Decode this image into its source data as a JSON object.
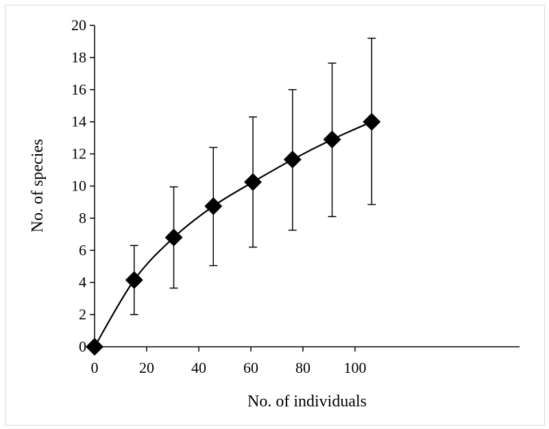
{
  "chart_data": {
    "type": "scatter",
    "xlabel": "No. of individuals",
    "ylabel": "No. of species",
    "xlim": [
      0,
      110
    ],
    "ylim": [
      0,
      20
    ],
    "x_ticks": [
      0,
      20,
      40,
      60,
      80,
      100
    ],
    "y_ticks": [
      0,
      2,
      4,
      6,
      8,
      10,
      12,
      14,
      16,
      18,
      20
    ],
    "grid": false,
    "legend": "none",
    "marker": "diamond",
    "line": "smooth",
    "color": "#000000",
    "series": [
      {
        "x": [
          0,
          15.2,
          30.4,
          45.6,
          60.8,
          76,
          91.2,
          106.4
        ],
        "y": [
          0,
          4.15,
          6.8,
          8.75,
          10.25,
          11.65,
          12.9,
          14.0
        ],
        "error_low": [
          0,
          2.0,
          3.65,
          5.05,
          6.2,
          7.25,
          8.1,
          8.85
        ],
        "error_high": [
          0,
          6.3,
          9.95,
          12.4,
          14.3,
          16.0,
          17.65,
          19.2
        ]
      }
    ]
  }
}
